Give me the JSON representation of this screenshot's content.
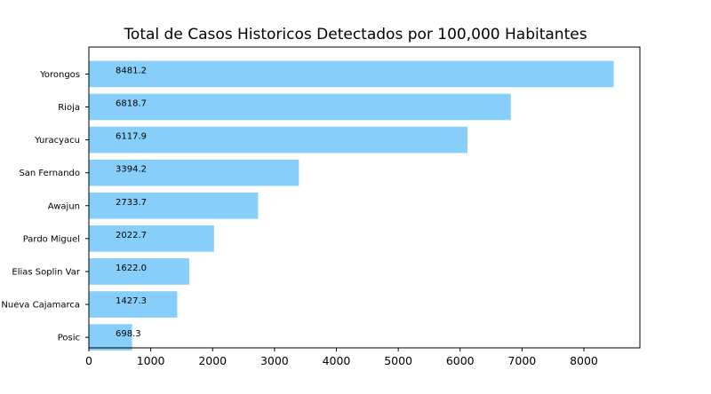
{
  "chart_data": {
    "type": "bar",
    "orientation": "horizontal",
    "title": "Total de Casos Historicos Detectados por 100,000 Habitantes",
    "xlabel": "",
    "ylabel": "",
    "categories": [
      "Yorongos",
      "Rioja",
      "Yuracyacu",
      "San Fernando",
      "Awajun",
      "Pardo Miguel",
      "Elias Soplin Var",
      "Nueva Cajamarca",
      "Posic"
    ],
    "values": [
      8481.2,
      6818.7,
      6117.9,
      3394.2,
      2733.7,
      2022.7,
      1622.0,
      1427.3,
      698.3
    ],
    "data_labels": [
      "8481.2",
      "6818.7",
      "6117.9",
      "3394.2",
      "2733.7",
      "2022.7",
      "1622.0",
      "1427.3",
      "698.3"
    ],
    "xlim": [
      0,
      8905
    ],
    "xticks": [
      0,
      1000,
      2000,
      3000,
      4000,
      5000,
      6000,
      7000,
      8000
    ],
    "xtick_labels": [
      "0",
      "1000",
      "2000",
      "3000",
      "4000",
      "5000",
      "6000",
      "7000",
      "8000"
    ],
    "grid": false,
    "legend": "none",
    "bar_color": "#87CEFA"
  }
}
